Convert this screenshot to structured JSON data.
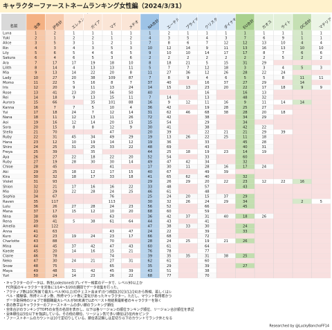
{
  "header": {
    "title": "キャラクターファーストネームランキング女性編（2024/3/31）"
  },
  "table": {
    "name_header": "名前",
    "columns": [
      {
        "label": "全体",
        "color": "#f4b183"
      },
      {
        "label": "JP合計",
        "color": "#f8cbad"
      },
      {
        "label": "エレメンタル",
        "color": "#fbe5d6"
      },
      {
        "label": "ガイア",
        "color": "#fbe5d6"
      },
      {
        "label": "マナ",
        "color": "#fbe5d6"
      },
      {
        "label": "メテオ",
        "color": "#fbe5d6"
      },
      {
        "label": "NA合計",
        "color": "#9dc3e6"
      },
      {
        "label": "エーテル",
        "color": "#deebf7"
      },
      {
        "label": "プライマル",
        "color": "#deebf7"
      },
      {
        "label": "クリスタル",
        "color": "#deebf7"
      },
      {
        "label": "ダイナモ",
        "color": "#deebf7"
      },
      {
        "label": "EU合計",
        "color": "#a9d18e"
      },
      {
        "label": "カオス",
        "color": "#e2f0d9"
      },
      {
        "label": "ライト",
        "color": "#e2f0d9"
      },
      {
        "label": "OC合計",
        "color": "#c5e0b3"
      },
      {
        "label": "マテリア",
        "color": "#ecf5e6"
      }
    ],
    "rows": [
      {
        "name": "Luna",
        "values": [
          1,
          2,
          1,
          1,
          1,
          1,
          1,
          2,
          1,
          1,
          1,
          1,
          1,
          1,
          1,
          1
        ]
      },
      {
        "name": "Yuki",
        "values": [
          2,
          1,
          2,
          2,
          1,
          2,
          4,
          3,
          5,
          4,
          3,
          7,
          6,
          9,
          1,
          1
        ]
      },
      {
        "name": "Alice",
        "values": [
          3,
          5,
          3,
          1,
          2,
          1,
          7,
          8,
          6,
          7,
          12,
          12,
          13,
          10,
          4,
          4
        ]
      },
      {
        "name": "Rin",
        "values": [
          4,
          3,
          4,
          3,
          5,
          3,
          10,
          12,
          14,
          9,
          11,
          13,
          16,
          13,
          10,
          10
        ]
      },
      {
        "name": "Lily",
        "values": [
          5,
          6,
          5,
          4,
          6,
          5,
          9,
          10,
          10,
          14,
          17,
          17,
          8,
          7,
          6,
          6
        ]
      },
      {
        "name": "Sakura",
        "values": [
          6,
          4,
          6,
          5,
          3,
          6,
          2,
          2,
          2,
          2,
          2,
          2,
          2,
          5,
          2,
          2
        ]
      },
      {
        "name": "Ara",
        "values": [
          7,
          17,
          17,
          19,
          18,
          10,
          8,
          18,
          21,
          5,
          15,
          31,
          29,
          null,
          null,
          null
        ]
      },
      {
        "name": "Lilith",
        "values": [
          8,
          14,
          4,
          13,
          13,
          11,
          5,
          7,
          7,
          12,
          18,
          3,
          3,
          4,
          5,
          3
        ]
      },
      {
        "name": "Mia",
        "values": [
          9,
          13,
          14,
          22,
          20,
          8,
          11,
          27,
          36,
          12,
          26,
          28,
          22,
          24,
          null,
          null
        ]
      },
      {
        "name": "Lady",
        "values": [
          10,
          27,
          20,
          38,
          109,
          87,
          7,
          8,
          9,
          4,
          6,
          5,
          5,
          8,
          11,
          11
        ]
      },
      {
        "name": "Momo",
        "values": [
          11,
          22,
          5,
          16,
          8,
          7,
          37,
          40,
          null,
          16,
          37,
          27,
          29,
          null,
          14,
          null
        ]
      },
      {
        "name": "Iris",
        "values": [
          12,
          20,
          9,
          11,
          13,
          24,
          14,
          15,
          13,
          23,
          20,
          22,
          17,
          18,
          9,
          9
        ]
      },
      {
        "name": "Rose",
        "values": [
          13,
          41,
          23,
          20,
          56,
          50,
          40,
          null,
          null,
          16,
          null,
          16,
          13,
          null,
          null,
          null
        ]
      },
      {
        "name": "Rei",
        "values": [
          14,
          18,
          9,
          13,
          15,
          11,
          7,
          14,
          null,
          13,
          null,
          48,
          32,
          null,
          null,
          null
        ]
      },
      {
        "name": "Aurora",
        "values": [
          15,
          66,
          null,
          35,
          101,
          88,
          16,
          9,
          12,
          11,
          16,
          9,
          11,
          14,
          14,
          null
        ]
      },
      {
        "name": "Kanna",
        "values": [
          16,
          7,
          7,
          5,
          10,
          4,
          36,
          42,
          null,
          19,
          28,
          25,
          27,
          null,
          null,
          null
        ]
      },
      {
        "name": "Yui",
        "values": [
          17,
          18,
          24,
          7,
          12,
          14,
          31,
          62,
          46,
          68,
          38,
          28,
          20,
          18,
          null,
          null
        ]
      },
      {
        "name": "Nana",
        "values": [
          18,
          11,
          12,
          13,
          11,
          26,
          72,
          42,
          null,
          38,
          null,
          34,
          29,
          null,
          null,
          null
        ]
      },
      {
        "name": "Aoi",
        "values": [
          19,
          16,
          12,
          14,
          20,
          15,
          15,
          54,
          null,
          29,
          null,
          34,
          null,
          null,
          null,
          null
        ]
      },
      {
        "name": "Sora",
        "values": [
          20,
          15,
          8,
          8,
          12,
          9,
          30,
          41,
          null,
          38,
          null,
          42,
          22,
          null,
          null,
          null
        ]
      },
      {
        "name": "Stella",
        "values": [
          21,
          70,
          null,
          null,
          47,
          null,
          20,
          39,
          null,
          22,
          21,
          21,
          29,
          39,
          null,
          null
        ]
      },
      {
        "name": "Ruby",
        "values": [
          22,
          31,
          45,
          34,
          49,
          29,
          19,
          13,
          26,
          22,
          25,
          11,
          18,
          null,
          null,
          null
        ]
      },
      {
        "name": "Hana",
        "values": [
          23,
          12,
          10,
          19,
          14,
          12,
          19,
          36,
          null,
          33,
          null,
          45,
          28,
          null,
          null,
          null
        ]
      },
      {
        "name": "Shiro",
        "values": [
          24,
          25,
          31,
          25,
          33,
          22,
          48,
          69,
          null,
          43,
          null,
          40,
          31,
          null,
          null,
          null
        ]
      },
      {
        "name": "Freya",
        "values": [
          25,
          39,
          null,
          35,
          null,
          null,
          44,
          25,
          18,
          19,
          23,
          14,
          19,
          null,
          null,
          null
        ]
      },
      {
        "name": "Aya",
        "values": [
          26,
          27,
          22,
          18,
          22,
          20,
          52,
          54,
          null,
          33,
          null,
          60,
          null,
          null,
          null,
          null
        ]
      },
      {
        "name": "Ruby",
        "values": [
          27,
          19,
          28,
          30,
          30,
          14,
          49,
          47,
          42,
          34,
          null,
          32,
          null,
          null,
          null,
          null
        ]
      },
      {
        "name": "Chloe",
        "values": [
          28,
          45,
          null,
          null,
          41,
          null,
          17,
          30,
          11,
          28,
          16,
          17,
          24,
          null,
          null,
          null
        ]
      },
      {
        "name": "Aki",
        "values": [
          29,
          25,
          18,
          12,
          17,
          15,
          40,
          67,
          null,
          49,
          39,
          null,
          null,
          null,
          null,
          null
        ]
      },
      {
        "name": "Kira",
        "values": [
          30,
          32,
          18,
          17,
          33,
          18,
          41,
          65,
          62,
          40,
          null,
          32,
          null,
          null,
          null,
          null
        ]
      },
      {
        "name": "Violet",
        "values": [
          31,
          93,
          null,
          null,
          null,
          null,
          29,
          26,
          29,
          20,
          22,
          23,
          12,
          22,
          16,
          null
        ]
      },
      {
        "name": "Shion",
        "values": [
          32,
          21,
          17,
          16,
          16,
          22,
          33,
          48,
          null,
          57,
          null,
          43,
          null,
          null,
          null,
          null
        ]
      },
      {
        "name": "Mio",
        "values": [
          33,
          29,
          22,
          28,
          24,
          25,
          46,
          61,
          null,
          48,
          null,
          null,
          null,
          null,
          null,
          null
        ]
      },
      {
        "name": "Sophia",
        "values": [
          34,
          67,
          null,
          null,
          76,
          null,
          25,
          24,
          20,
          15,
          37,
          29,
          null,
          null,
          null,
          null
        ]
      },
      {
        "name": "Raven",
        "values": [
          35,
          117,
          null,
          null,
          113,
          null,
          30,
          32,
          26,
          24,
          29,
          34,
          null,
          null,
          2,
          5
        ]
      },
      {
        "name": "Lulu",
        "values": [
          36,
          26,
          27,
          28,
          24,
          23,
          56,
          52,
          null,
          66,
          null,
          45,
          null,
          null,
          null,
          null
        ]
      },
      {
        "name": "Mana",
        "values": [
          37,
          17,
          15,
          12,
          10,
          20,
          68,
          60,
          null,
          59,
          null,
          null,
          null,
          null,
          null,
          null
        ]
      },
      {
        "name": "Nina",
        "values": [
          38,
          69,
          null,
          null,
          63,
          null,
          36,
          42,
          37,
          31,
          40,
          18,
          26,
          null,
          null,
          null
        ]
      },
      {
        "name": "Rena",
        "values": [
          39,
          41,
          5,
          38,
          61,
          64,
          44,
          43,
          null,
          41,
          null,
          null,
          null,
          null,
          null,
          null
        ]
      },
      {
        "name": "Amelia",
        "values": [
          40,
          122,
          null,
          null,
          null,
          null,
          47,
          38,
          33,
          30,
          null,
          24,
          null,
          null,
          null,
          null
        ]
      },
      {
        "name": "Anna",
        "values": [
          41,
          63,
          null,
          null,
          43,
          47,
          24,
          22,
          null,
          39,
          null,
          33,
          null,
          null,
          null,
          null
        ]
      },
      {
        "name": "Kuro",
        "values": [
          42,
          23,
          19,
          24,
          23,
          17,
          66,
          68,
          null,
          72,
          null,
          null,
          null,
          null,
          null,
          null
        ]
      },
      {
        "name": "Charlotte",
        "values": [
          43,
          88,
          null,
          null,
          70,
          null,
          28,
          24,
          25,
          19,
          21,
          26,
          null,
          null,
          null,
          null
        ]
      },
      {
        "name": "Mina",
        "values": [
          44,
          45,
          37,
          42,
          47,
          43,
          60,
          61,
          null,
          64,
          null,
          null,
          null,
          null,
          null,
          null
        ]
      },
      {
        "name": "Kaede",
        "values": [
          45,
          20,
          14,
          16,
          15,
          21,
          76,
          78,
          null,
          77,
          null,
          null,
          null,
          null,
          null,
          null
        ]
      },
      {
        "name": "Claire",
        "values": [
          46,
          78,
          null,
          null,
          74,
          null,
          39,
          35,
          35,
          31,
          38,
          25,
          null,
          null,
          null,
          null
        ]
      },
      {
        "name": "Neko",
        "values": [
          47,
          30,
          24,
          21,
          27,
          31,
          62,
          61,
          null,
          60,
          null,
          null,
          null,
          null,
          null,
          null
        ]
      },
      {
        "name": "Snow",
        "values": [
          48,
          75,
          null,
          null,
          65,
          null,
          35,
          29,
          null,
          39,
          null,
          27,
          null,
          null,
          null,
          null
        ]
      },
      {
        "name": "Maya",
        "values": [
          49,
          48,
          31,
          42,
          45,
          39,
          43,
          51,
          null,
          38,
          null,
          null,
          null,
          null,
          null,
          null
        ]
      },
      {
        "name": "Yuri",
        "values": [
          50,
          24,
          14,
          23,
          26,
          22,
          68,
          77,
          null,
          70,
          null,
          null,
          null,
          null,
          null,
          null
        ]
      }
    ]
  },
  "footnotes": [
    "・キャラクターのデータは、新生Lodestoneのプレイヤー検索のデータで、レベル90以上か",
    "　FC所属のキャラクターを対象に1/14〜3/20の期間でデータ収集を行った。",
    "・アクティブ数はGC所属で最大レベル90以上(IDチェスト含まず)かつ前回(2023/12/24)から新規、若しくはレ",
    "　ベル・経験値、所持ミニオン数、所持マウント数に変化があったキャラクター。ただし、マウント取得者かつ",
    "　データ取得時のジョブで戦闘職最大レベルが90未満でLLEベースト宛結果最新者のキャラクターを除く",
    "・表の数字はキャラクターのファーストネームの多い順のランキング順位",
    "・全体合計のランキングTOP5の女性の名前を表示し、以下は各リージョンの順位ランキング順位、リージョン合計順位を表記",
    "・全体順位は5位以下を強調している。その他の順位、リージョン別で多い順位は5位内をピンク",
    "・ファーストネームのカウントは10で足切りしている。順位表記無しは足切り以下のカウントでランク外となる"
  ],
  "credit": "Researched by @LuckyBanchoFF14"
}
